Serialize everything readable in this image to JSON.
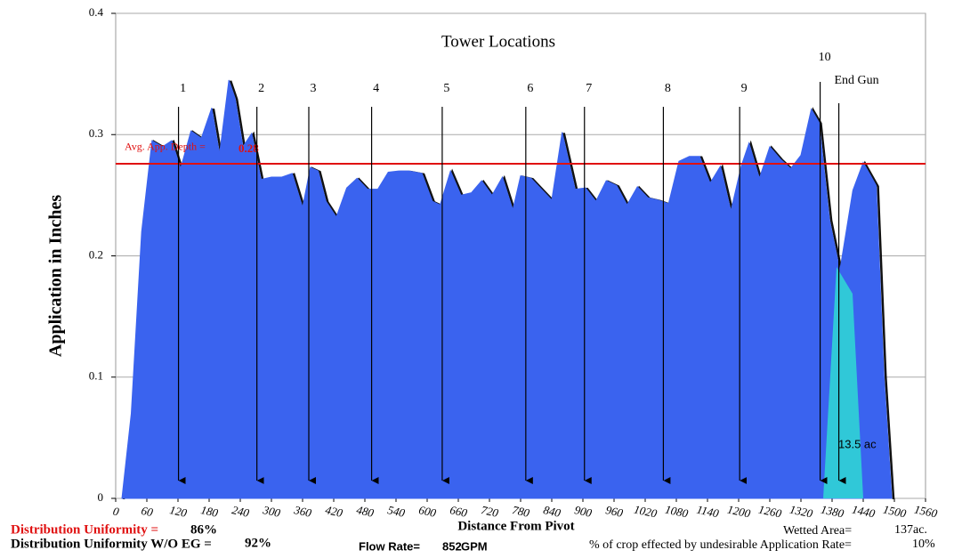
{
  "chart_data": {
    "type": "area",
    "annotation": "Tower Locations",
    "y_label": "Application in Inches",
    "x_label": "Distance From Pivot",
    "color": "#3a63ef",
    "xlim": [
      0,
      1560
    ],
    "ylim": [
      0,
      0.4
    ],
    "xticks": [
      0,
      60,
      120,
      180,
      240,
      300,
      360,
      420,
      480,
      540,
      600,
      660,
      720,
      780,
      840,
      900,
      960,
      1020,
      1080,
      1140,
      1200,
      1260,
      1320,
      1380,
      1440,
      1500,
      1560
    ],
    "yticks": [
      0,
      0.1,
      0.2,
      0.3,
      0.4
    ],
    "grid": true,
    "x": [
      12,
      30,
      50,
      70,
      90,
      108,
      125,
      145,
      165,
      185,
      200,
      218,
      230,
      245,
      262,
      280,
      300,
      320,
      340,
      360,
      375,
      390,
      405,
      425,
      445,
      465,
      485,
      505,
      525,
      545,
      565,
      590,
      610,
      625,
      645,
      665,
      685,
      705,
      725,
      745,
      765,
      780,
      800,
      820,
      840,
      860,
      885,
      905,
      925,
      945,
      965,
      985,
      1005,
      1025,
      1045,
      1065,
      1085,
      1105,
      1125,
      1145,
      1165,
      1185,
      1205,
      1220,
      1240,
      1260,
      1280,
      1300,
      1320,
      1340,
      1355,
      1375,
      1395,
      1420,
      1440,
      1465,
      1480,
      1495
    ],
    "values": [
      0,
      0.07,
      0.22,
      0.295,
      0.29,
      0.295,
      0.272,
      0.303,
      0.297,
      0.322,
      0.284,
      0.345,
      0.33,
      0.29,
      0.301,
      0.263,
      0.265,
      0.265,
      0.268,
      0.24,
      0.273,
      0.27,
      0.245,
      0.232,
      0.256,
      0.264,
      0.255,
      0.255,
      0.269,
      0.27,
      0.27,
      0.268,
      0.245,
      0.242,
      0.27,
      0.25,
      0.252,
      0.262,
      0.25,
      0.265,
      0.238,
      0.266,
      0.264,
      0.255,
      0.246,
      0.302,
      0.255,
      0.256,
      0.245,
      0.262,
      0.258,
      0.242,
      0.257,
      0.248,
      0.246,
      0.243,
      0.278,
      0.282,
      0.282,
      0.26,
      0.274,
      0.237,
      0.274,
      0.293,
      0.264,
      0.29,
      0.28,
      0.272,
      0.283,
      0.321,
      0.31,
      0.23,
      0.188,
      0.254,
      0.277,
      0.258,
      0.1,
      0
    ],
    "avg_label": "Avg. App. Depth =",
    "avg_depth": 0.276,
    "avg_value_label": "0.28",
    "avg_color": "#e01010",
    "towers": [
      {
        "label": "1",
        "x": 121
      },
      {
        "label": "2",
        "x": 272
      },
      {
        "label": "3",
        "x": 372
      },
      {
        "label": "4",
        "x": 493
      },
      {
        "label": "5",
        "x": 629
      },
      {
        "label": "6",
        "x": 790
      },
      {
        "label": "7",
        "x": 903
      },
      {
        "label": "8",
        "x": 1055
      },
      {
        "label": "9",
        "x": 1202
      },
      {
        "label": "10",
        "x": 1357
      },
      {
        "label": "End Gun",
        "x": 1393
      }
    ],
    "end_gun_area": "13.5 ac"
  },
  "footer": {
    "du_label": "Distribution Uniformity  =",
    "du_value": "86%",
    "du_eg_label": "Distribution Uniformity W/O EG =",
    "du_eg_value": "92%",
    "flow_label": "Flow Rate=",
    "flow_value": "852",
    "flow_unit": "GPM",
    "wetted_label": "Wetted Area=",
    "wetted_value": "137ac.",
    "crop_label": "% of crop effected by undesirable Application Rate=",
    "crop_value": "10%"
  }
}
